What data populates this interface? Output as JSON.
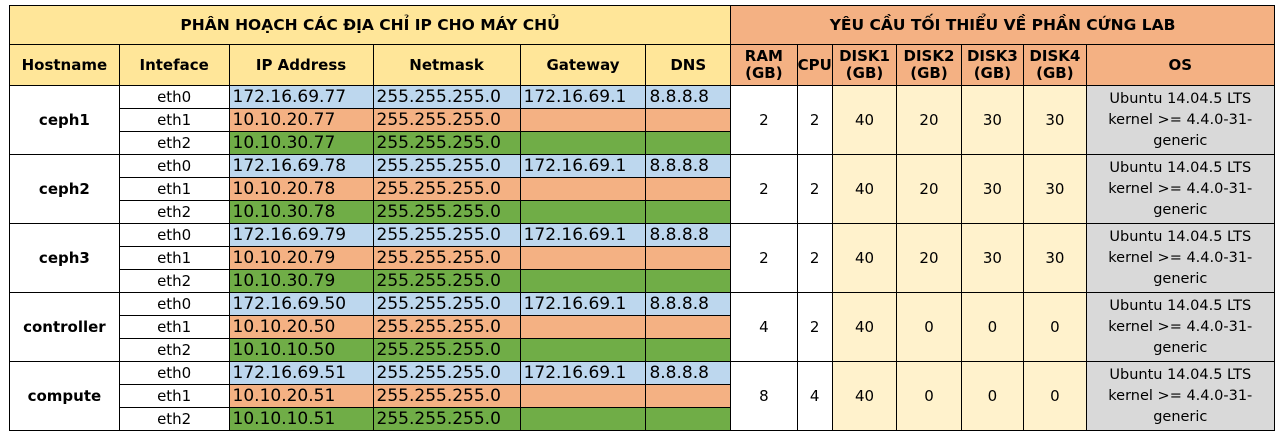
{
  "title_left": "PHÂN HOẠCH CÁC ĐỊA CHỈ IP CHO MÁY CHỦ",
  "title_right": "YÊU CẦU TỐI THIỂU VỀ PHẦN CỨNG LAB",
  "headers": {
    "hostname": "Hostname",
    "interface": "Inteface",
    "ip": "IP Address",
    "netmask": "Netmask",
    "gateway": "Gateway",
    "dns": "DNS",
    "ram": [
      "RAM",
      "(GB)"
    ],
    "cpu": "CPU",
    "disk1": [
      "DISK1",
      "(GB)"
    ],
    "disk2": [
      "DISK2",
      "(GB)"
    ],
    "disk3": [
      "DISK3",
      "(GB)"
    ],
    "disk4": [
      "DISK4",
      "(GB)"
    ],
    "os": "OS"
  },
  "colors": {
    "yellow": "#ffe699",
    "salmon": "#f4b183",
    "light_blue": "#bdd7ee",
    "green": "#70ad47",
    "cream": "#fff2cc",
    "grey": "#d9d9d9"
  },
  "hosts": [
    {
      "name": "ceph1",
      "ifaces": [
        {
          "iface": "eth0",
          "ip": "172.16.69.77",
          "netmask": "255.255.255.0",
          "gateway": "172.16.69.1",
          "dns": "8.8.8.8"
        },
        {
          "iface": "eth1",
          "ip": "10.10.20.77",
          "netmask": "255.255.255.0",
          "gateway": "",
          "dns": ""
        },
        {
          "iface": "eth2",
          "ip": "10.10.30.77",
          "netmask": "255.255.255.0",
          "gateway": "",
          "dns": ""
        }
      ],
      "ram": "2",
      "cpu": "2",
      "disk1": "40",
      "disk2": "20",
      "disk3": "30",
      "disk4": "30",
      "os": [
        "Ubuntu 14.04.5 LTS",
        "kernel >= 4.4.0-31-",
        "generic"
      ]
    },
    {
      "name": "ceph2",
      "ifaces": [
        {
          "iface": "eth0",
          "ip": "172.16.69.78",
          "netmask": "255.255.255.0",
          "gateway": "172.16.69.1",
          "dns": "8.8.8.8"
        },
        {
          "iface": "eth1",
          "ip": "10.10.20.78",
          "netmask": "255.255.255.0",
          "gateway": "",
          "dns": ""
        },
        {
          "iface": "eth2",
          "ip": "10.10.30.78",
          "netmask": "255.255.255.0",
          "gateway": "",
          "dns": ""
        }
      ],
      "ram": "2",
      "cpu": "2",
      "disk1": "40",
      "disk2": "20",
      "disk3": "30",
      "disk4": "30",
      "os": [
        "Ubuntu 14.04.5 LTS",
        "kernel >= 4.4.0-31-",
        "generic"
      ]
    },
    {
      "name": "ceph3",
      "ifaces": [
        {
          "iface": "eth0",
          "ip": "172.16.69.79",
          "netmask": "255.255.255.0",
          "gateway": "172.16.69.1",
          "dns": "8.8.8.8"
        },
        {
          "iface": "eth1",
          "ip": "10.10.20.79",
          "netmask": "255.255.255.0",
          "gateway": "",
          "dns": ""
        },
        {
          "iface": "eth2",
          "ip": "10.10.30.79",
          "netmask": "255.255.255.0",
          "gateway": "",
          "dns": ""
        }
      ],
      "ram": "2",
      "cpu": "2",
      "disk1": "40",
      "disk2": "20",
      "disk3": "30",
      "disk4": "30",
      "os": [
        "Ubuntu 14.04.5 LTS",
        "kernel >= 4.4.0-31-",
        "generic"
      ]
    },
    {
      "name": "controller",
      "ifaces": [
        {
          "iface": "eth0",
          "ip": "172.16.69.50",
          "netmask": "255.255.255.0",
          "gateway": "172.16.69.1",
          "dns": "8.8.8.8"
        },
        {
          "iface": "eth1",
          "ip": "10.10.20.50",
          "netmask": "255.255.255.0",
          "gateway": "",
          "dns": ""
        },
        {
          "iface": "eth2",
          "ip": "10.10.10.50",
          "netmask": "255.255.255.0",
          "gateway": "",
          "dns": ""
        }
      ],
      "ram": "4",
      "cpu": "2",
      "disk1": "40",
      "disk2": "0",
      "disk3": "0",
      "disk4": "0",
      "os": [
        "Ubuntu 14.04.5 LTS",
        "kernel >= 4.4.0-31-",
        "generic"
      ]
    },
    {
      "name": "compute",
      "ifaces": [
        {
          "iface": "eth0",
          "ip": "172.16.69.51",
          "netmask": "255.255.255.0",
          "gateway": "172.16.69.1",
          "dns": "8.8.8.8"
        },
        {
          "iface": "eth1",
          "ip": "10.10.20.51",
          "netmask": "255.255.255.0",
          "gateway": "",
          "dns": ""
        },
        {
          "iface": "eth2",
          "ip": "10.10.10.51",
          "netmask": "255.255.255.0",
          "gateway": "",
          "dns": ""
        }
      ],
      "ram": "8",
      "cpu": "4",
      "disk1": "40",
      "disk2": "0",
      "disk3": "0",
      "disk4": "0",
      "os": [
        "Ubuntu 14.04.5 LTS",
        "kernel >= 4.4.0-31-",
        "generic"
      ]
    }
  ]
}
